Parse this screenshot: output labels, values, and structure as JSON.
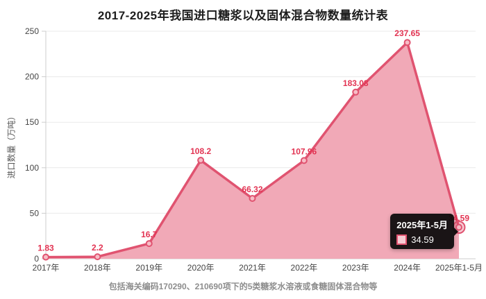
{
  "chart_data": {
    "type": "area",
    "title": "2017-2025年我国进口糖浆以及固体混合物数量统计表",
    "ylabel": "进口数量（万吨）",
    "xlabel": "",
    "footnote": "包括海关编码170290、210690项下的5类糖浆水溶液或食糖固体混合物等",
    "categories": [
      "2017年",
      "2018年",
      "2019年",
      "2020年",
      "2021年",
      "2022年",
      "2023年",
      "2024年",
      "2025年1-5月"
    ],
    "values": [
      1.83,
      2.2,
      16.7,
      108.2,
      66.32,
      107.96,
      183.08,
      237.65,
      34.59
    ],
    "labels": [
      "1.83",
      "2.2",
      "16.7",
      "108.2",
      "66.32",
      "107.96",
      "183.08",
      "237.65",
      "34.59"
    ],
    "ylim": [
      0,
      250
    ],
    "yticks": [
      0,
      50,
      100,
      150,
      200,
      250
    ],
    "grid": true,
    "legend_position": "none",
    "highlight_index": 8,
    "colors": {
      "line": "#e05370",
      "area": "#f1a9b7",
      "label": "#e23352",
      "marker_fill": "#f7bcc6",
      "axis": "#cccccc",
      "gridline": "#e9e9e9",
      "axis_text": "#444444"
    }
  },
  "tooltip": {
    "title": "2025年1-5月",
    "value": "34.59"
  }
}
